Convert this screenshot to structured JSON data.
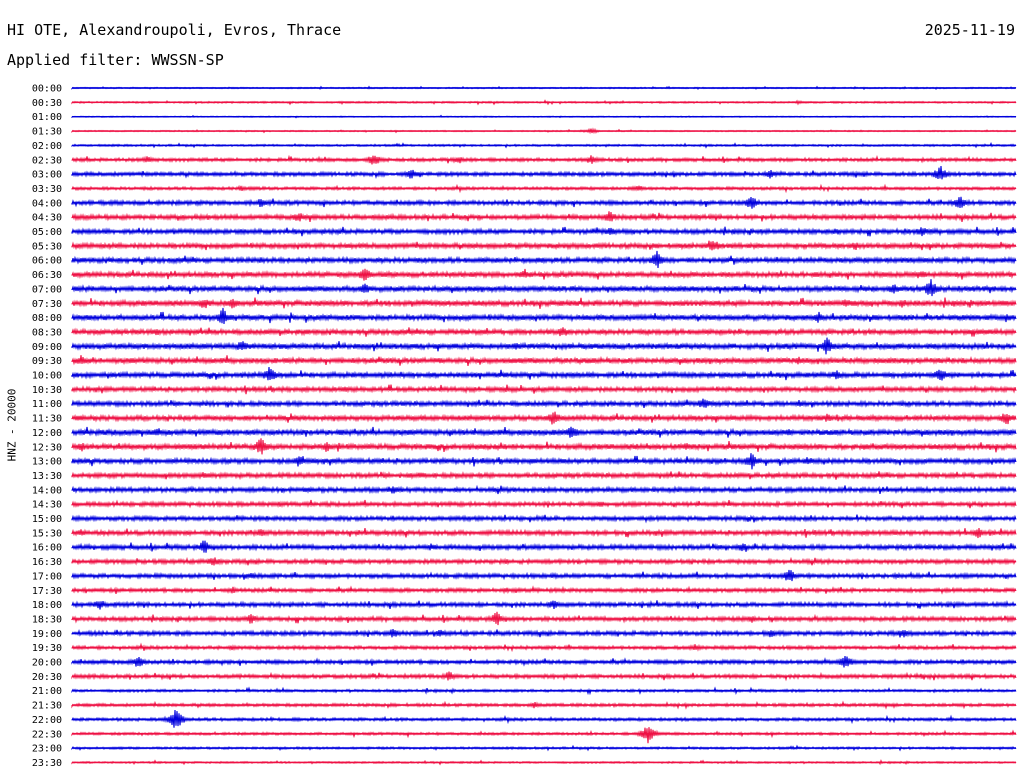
{
  "header": {
    "station": "HI OTE, Alexandroupoli, Evros, Thrace",
    "date": "2025-11-19",
    "filter": "Applied filter: WWSSN-SP"
  },
  "channel_label": "HNZ - 20000",
  "colors": {
    "trace_a": "#0000dd",
    "trace_b": "#ee1144"
  },
  "chart_data": {
    "type": "line",
    "title": "",
    "ylabel": "HNZ - 20000",
    "xlabel": "",
    "row_interval_minutes": 30,
    "rows": [
      "00:00",
      "00:30",
      "01:00",
      "01:30",
      "02:00",
      "02:30",
      "03:00",
      "03:30",
      "04:00",
      "04:30",
      "05:00",
      "05:30",
      "06:00",
      "06:30",
      "07:00",
      "07:30",
      "08:00",
      "08:30",
      "09:00",
      "09:30",
      "10:00",
      "10:30",
      "11:00",
      "11:30",
      "12:00",
      "12:30",
      "13:00",
      "13:30",
      "14:00",
      "14:30",
      "15:00",
      "15:30",
      "16:00",
      "16:30",
      "17:00",
      "17:30",
      "18:00",
      "18:30",
      "19:00",
      "19:30",
      "20:00",
      "20:30",
      "21:00",
      "21:30",
      "22:00",
      "22:30",
      "23:00",
      "23:30"
    ],
    "row_colors": [
      "blue",
      "red"
    ],
    "noise_level": [
      0.6,
      0.8,
      0.5,
      0.6,
      0.9,
      1.6,
      1.8,
      1.4,
      2.0,
      2.2,
      2.2,
      2.4,
      2.4,
      2.4,
      2.6,
      2.6,
      2.6,
      2.4,
      2.6,
      2.6,
      2.4,
      2.2,
      2.2,
      2.4,
      2.6,
      2.6,
      2.4,
      2.2,
      2.2,
      2.0,
      2.0,
      2.2,
      2.2,
      2.0,
      2.0,
      1.8,
      2.0,
      2.0,
      2.0,
      1.6,
      1.8,
      1.8,
      1.2,
      1.4,
      1.4,
      1.2,
      1.0,
      0.8
    ],
    "events": [
      [],
      [
        [
          0.77,
          2
        ]
      ],
      [],
      [
        [
          0.55,
          3
        ]
      ],
      [],
      [
        [
          0.08,
          4
        ],
        [
          0.32,
          7
        ],
        [
          0.41,
          4
        ],
        [
          0.55,
          5
        ]
      ],
      [
        [
          0.36,
          6
        ],
        [
          0.74,
          5
        ],
        [
          0.92,
          9
        ]
      ],
      [
        [
          0.18,
          3
        ],
        [
          0.6,
          4
        ]
      ],
      [
        [
          0.2,
          5
        ],
        [
          0.72,
          8
        ],
        [
          0.94,
          8
        ]
      ],
      [
        [
          0.24,
          6
        ],
        [
          0.57,
          7
        ]
      ],
      [
        [
          0.57,
          5
        ],
        [
          0.81,
          4
        ],
        [
          0.9,
          6
        ]
      ],
      [
        [
          0.68,
          7
        ],
        [
          0.83,
          5
        ]
      ],
      [
        [
          0.62,
          10
        ],
        [
          0.2,
          3
        ]
      ],
      [
        [
          0.31,
          8
        ],
        [
          0.48,
          6
        ],
        [
          0.9,
          5
        ]
      ],
      [
        [
          0.31,
          6
        ],
        [
          0.87,
          6
        ],
        [
          0.91,
          10
        ]
      ],
      [
        [
          0.14,
          7
        ],
        [
          0.17,
          6
        ],
        [
          0.82,
          6
        ],
        [
          0.88,
          5
        ]
      ],
      [
        [
          0.16,
          10
        ],
        [
          0.79,
          6
        ],
        [
          0.99,
          5
        ]
      ],
      [
        [
          0.09,
          4
        ],
        [
          0.52,
          6
        ],
        [
          0.97,
          4
        ]
      ],
      [
        [
          0.18,
          7
        ],
        [
          0.47,
          4
        ],
        [
          0.8,
          10
        ]
      ],
      [
        [
          0.01,
          6
        ],
        [
          0.77,
          5
        ],
        [
          0.92,
          4
        ]
      ],
      [
        [
          0.21,
          10
        ],
        [
          0.81,
          6
        ],
        [
          0.92,
          8
        ]
      ],
      [
        [
          0.29,
          4
        ],
        [
          0.46,
          3
        ]
      ],
      [
        [
          0.67,
          8
        ],
        [
          0.77,
          4
        ]
      ],
      [
        [
          0.51,
          9
        ],
        [
          0.8,
          5
        ],
        [
          0.99,
          8
        ]
      ],
      [
        [
          0.09,
          6
        ],
        [
          0.53,
          8
        ],
        [
          0.76,
          4
        ]
      ],
      [
        [
          0.01,
          5
        ],
        [
          0.2,
          10
        ],
        [
          0.27,
          6
        ],
        [
          0.65,
          5
        ],
        [
          0.84,
          4
        ]
      ],
      [
        [
          0.24,
          7
        ],
        [
          0.72,
          9
        ],
        [
          0.78,
          5
        ]
      ],
      [
        [
          0.14,
          4
        ],
        [
          0.37,
          4
        ]
      ],
      [
        [
          0.34,
          5
        ],
        [
          0.94,
          3
        ]
      ],
      [
        [
          0.22,
          3
        ],
        [
          0.56,
          4
        ]
      ],
      [],
      [
        [
          0.01,
          4
        ],
        [
          0.2,
          5
        ],
        [
          0.96,
          6
        ]
      ],
      [
        [
          0.14,
          8
        ],
        [
          0.38,
          4
        ],
        [
          0.71,
          5
        ]
      ],
      [
        [
          0.15,
          6
        ],
        [
          0.46,
          3
        ]
      ],
      [
        [
          0.19,
          4
        ],
        [
          0.76,
          8
        ]
      ],
      [
        [
          0.17,
          4
        ],
        [
          0.46,
          3
        ]
      ],
      [
        [
          0.03,
          6
        ],
        [
          0.51,
          5
        ]
      ],
      [
        [
          0.19,
          6
        ],
        [
          0.45,
          8
        ],
        [
          0.72,
          4
        ]
      ],
      [
        [
          0.34,
          6
        ],
        [
          0.39,
          4
        ],
        [
          0.74,
          5
        ],
        [
          0.88,
          5
        ]
      ],
      [
        [
          0.17,
          3
        ],
        [
          0.66,
          4
        ]
      ],
      [
        [
          0.07,
          7
        ],
        [
          0.82,
          8
        ]
      ],
      [
        [
          0.4,
          6
        ],
        [
          0.9,
          3
        ]
      ],
      [],
      [
        [
          0.49,
          4
        ]
      ],
      [
        [
          0.11,
          12
        ]
      ],
      [
        [
          0.61,
          10
        ]
      ],
      [],
      []
    ]
  }
}
